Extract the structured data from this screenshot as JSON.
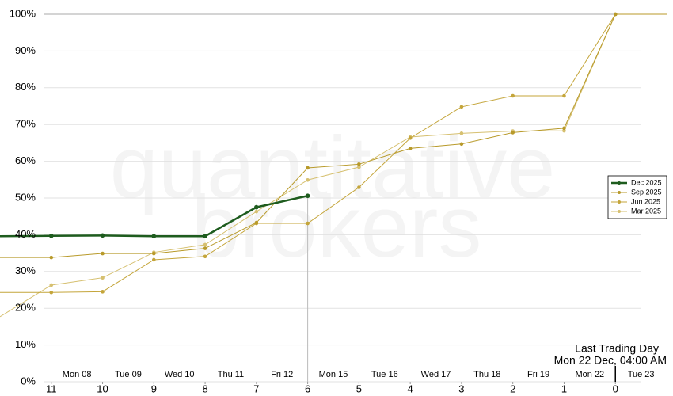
{
  "chart_data": {
    "type": "line",
    "watermark": [
      "quantitative",
      "brokers"
    ],
    "xlim": [
      12,
      -1
    ],
    "ylim": [
      0,
      100
    ],
    "xticks": [
      11,
      10,
      9,
      8,
      7,
      6,
      5,
      4,
      3,
      2,
      1,
      0
    ],
    "yticks": [
      {
        "value": 0,
        "label": "0%"
      },
      {
        "value": 10,
        "label": "10%"
      },
      {
        "value": 20,
        "label": "20%"
      },
      {
        "value": 30,
        "label": "30%"
      },
      {
        "value": 40,
        "label": "40%"
      },
      {
        "value": 50,
        "label": "50%"
      },
      {
        "value": 60,
        "label": "60%"
      },
      {
        "value": 70,
        "label": "70%"
      },
      {
        "value": 80,
        "label": "80%"
      },
      {
        "value": 90,
        "label": "90%"
      },
      {
        "value": 100,
        "label": "100%"
      }
    ],
    "date_ticks": [
      {
        "value": 10.5,
        "label": "Mon 08"
      },
      {
        "value": 9.5,
        "label": "Tue 09"
      },
      {
        "value": 8.5,
        "label": "Wed 10"
      },
      {
        "value": 7.5,
        "label": "Thu 11"
      },
      {
        "value": 6.5,
        "label": "Fri 12"
      },
      {
        "value": 5.5,
        "label": "Mon 15"
      },
      {
        "value": 4.5,
        "label": "Tue 16"
      },
      {
        "value": 3.5,
        "label": "Wed 17"
      },
      {
        "value": 2.5,
        "label": "Thu 18"
      },
      {
        "value": 1.5,
        "label": "Fri 19"
      },
      {
        "value": 0.5,
        "label": "Mon 22"
      },
      {
        "value": -0.5,
        "label": "Tue 23"
      }
    ],
    "annotation": {
      "x": 0,
      "lines": [
        "Last Trading Day",
        "Mon 22 Dec, 04:00 AM"
      ]
    },
    "grid": true,
    "legend": "right",
    "series": [
      {
        "name": "Dec 2025",
        "color": "#1e5c1e",
        "x": [
          12,
          11,
          10,
          9,
          8,
          7,
          6
        ],
        "values": [
          39.6,
          39.7,
          39.8,
          39.6,
          39.6,
          47.5,
          50.6
        ]
      },
      {
        "name": "Sep 2025",
        "color": "#b89a2a",
        "x": [
          12,
          11,
          10,
          9,
          8,
          7,
          6,
          5,
          4,
          3,
          2,
          1,
          0,
          -1
        ],
        "values": [
          33.8,
          33.8,
          34.9,
          34.9,
          36.3,
          43.3,
          58.2,
          59.2,
          63.5,
          64.7,
          67.8,
          69.0,
          100,
          100
        ]
      },
      {
        "name": "Jun 2025",
        "color": "#c4a53a",
        "x": [
          12,
          11,
          10,
          9,
          8,
          7,
          6,
          5,
          4,
          3,
          2,
          1,
          0
        ],
        "values": [
          24.3,
          24.3,
          24.5,
          33.2,
          34.1,
          43.1,
          43.1,
          52.9,
          66.3,
          74.8,
          77.8,
          77.8,
          100
        ]
      },
      {
        "name": "Mar 2025",
        "color": "#d6c070",
        "x": [
          12,
          11,
          10,
          9,
          8,
          7,
          6,
          5,
          4,
          3,
          2,
          1,
          0
        ],
        "values": [
          17.7,
          26.3,
          28.3,
          35.2,
          37.3,
          46.3,
          54.9,
          58.4,
          66.6,
          67.6,
          68.2,
          68.3,
          100
        ]
      }
    ]
  }
}
